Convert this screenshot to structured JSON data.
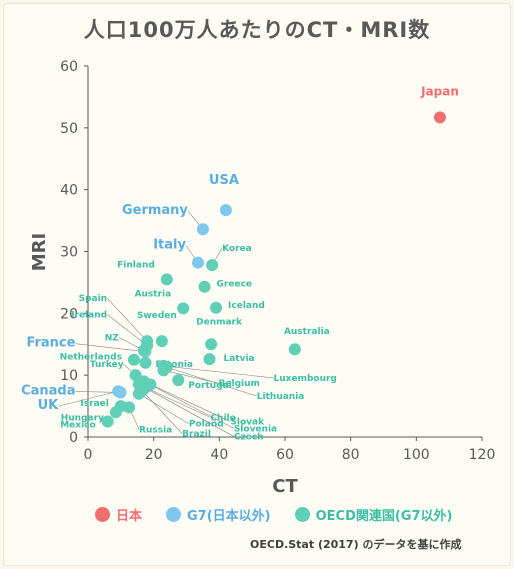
{
  "chart_data": {
    "type": "scatter",
    "title": "人口100万人あたりのCT・MRI数",
    "xlabel": "CT",
    "ylabel": "MRI",
    "xlim": [
      0,
      120
    ],
    "ylim": [
      0,
      60
    ],
    "xticks": [
      0,
      20,
      40,
      60,
      80,
      100,
      120
    ],
    "yticks": [
      0,
      10,
      20,
      30,
      40,
      50,
      60
    ],
    "grid": false,
    "legend_position": "bottom",
    "colors": {
      "japan": "#f06e6e",
      "g7": "#7ec8ee",
      "oecd": "#5fcfb5",
      "japan_label": "#f06e6e",
      "g7_label": "#5aaee0",
      "oecd_label": "#3dbfa5",
      "axis": "#595959"
    },
    "series": [
      {
        "name": "日本",
        "key": "japan",
        "points": [
          {
            "label": "Japan",
            "x": 107.2,
            "y": 51.7
          }
        ]
      },
      {
        "name": "G7(日本以外)",
        "key": "g7",
        "points": [
          {
            "label": "USA",
            "x": 42.0,
            "y": 36.7
          },
          {
            "label": "Germany",
            "x": 35.0,
            "y": 33.6
          },
          {
            "label": "Italy",
            "x": 33.5,
            "y": 28.2
          },
          {
            "label": "France",
            "x": 17.5,
            "y": 13.8
          },
          {
            "label": "Canada",
            "x": 9.9,
            "y": 7.2
          },
          {
            "label": "UK",
            "x": 9.2,
            "y": 7.4
          }
        ]
      },
      {
        "name": "OECD関連国(G7以外)",
        "key": "oecd",
        "points": [
          {
            "label": "Korea",
            "x": 37.8,
            "y": 27.8
          },
          {
            "label": "Finland",
            "x": 24.0,
            "y": 25.5
          },
          {
            "label": "Greece",
            "x": 35.5,
            "y": 24.3
          },
          {
            "label": "Austria",
            "x": 29.0,
            "y": 20.8
          },
          {
            "label": "Iceland",
            "x": 39.0,
            "y": 20.9
          },
          {
            "label": "Spain",
            "x": 18.0,
            "y": 15.5
          },
          {
            "label": "Ireland",
            "x": 18.0,
            "y": 14.8
          },
          {
            "label": "Sweden",
            "x": 22.5,
            "y": 15.5
          },
          {
            "label": "NZ",
            "x": 17.0,
            "y": 14.0
          },
          {
            "label": "Denmark",
            "x": 37.5,
            "y": 15.0
          },
          {
            "label": "Australia",
            "x": 63.0,
            "y": 14.2
          },
          {
            "label": "Netherlands",
            "x": 14.0,
            "y": 12.5
          },
          {
            "label": "Estonia",
            "x": 17.5,
            "y": 12.0
          },
          {
            "label": "Latvia",
            "x": 37.0,
            "y": 12.6
          },
          {
            "label": "Luxembourg",
            "x": 23.0,
            "y": 11.5
          },
          {
            "label": "Belgium",
            "x": 23.0,
            "y": 10.8
          },
          {
            "label": "Lithuania",
            "x": 24.0,
            "y": 11.3
          },
          {
            "label": "Turkey",
            "x": 14.5,
            "y": 10.0
          },
          {
            "label": "Portugal",
            "x": 27.5,
            "y": 9.2
          },
          {
            "label": "Chile",
            "x": 17.5,
            "y": 8.0
          },
          {
            "label": "Slovak",
            "x": 19.0,
            "y": 8.5
          },
          {
            "label": "Slovenia",
            "x": 17.0,
            "y": 9.0
          },
          {
            "label": "Israel",
            "x": 10.0,
            "y": 5.0
          },
          {
            "label": "Poland",
            "x": 15.5,
            "y": 7.0
          },
          {
            "label": "Hungary",
            "x": 8.5,
            "y": 4.0
          },
          {
            "label": "Brazil",
            "x": 16.5,
            "y": 7.5
          },
          {
            "label": "Czech",
            "x": 15.5,
            "y": 8.5
          },
          {
            "label": "Mexico",
            "x": 6.0,
            "y": 2.5
          },
          {
            "label": "Russia",
            "x": 12.5,
            "y": 4.8
          }
        ]
      }
    ]
  },
  "legend": [
    {
      "key": "japan",
      "label": "日本"
    },
    {
      "key": "g7",
      "label": "G7(日本以外)"
    },
    {
      "key": "oecd",
      "label": "OECD関連国(G7以外)"
    }
  ],
  "source": "OECD.Stat (2017) のデータを基に作成"
}
